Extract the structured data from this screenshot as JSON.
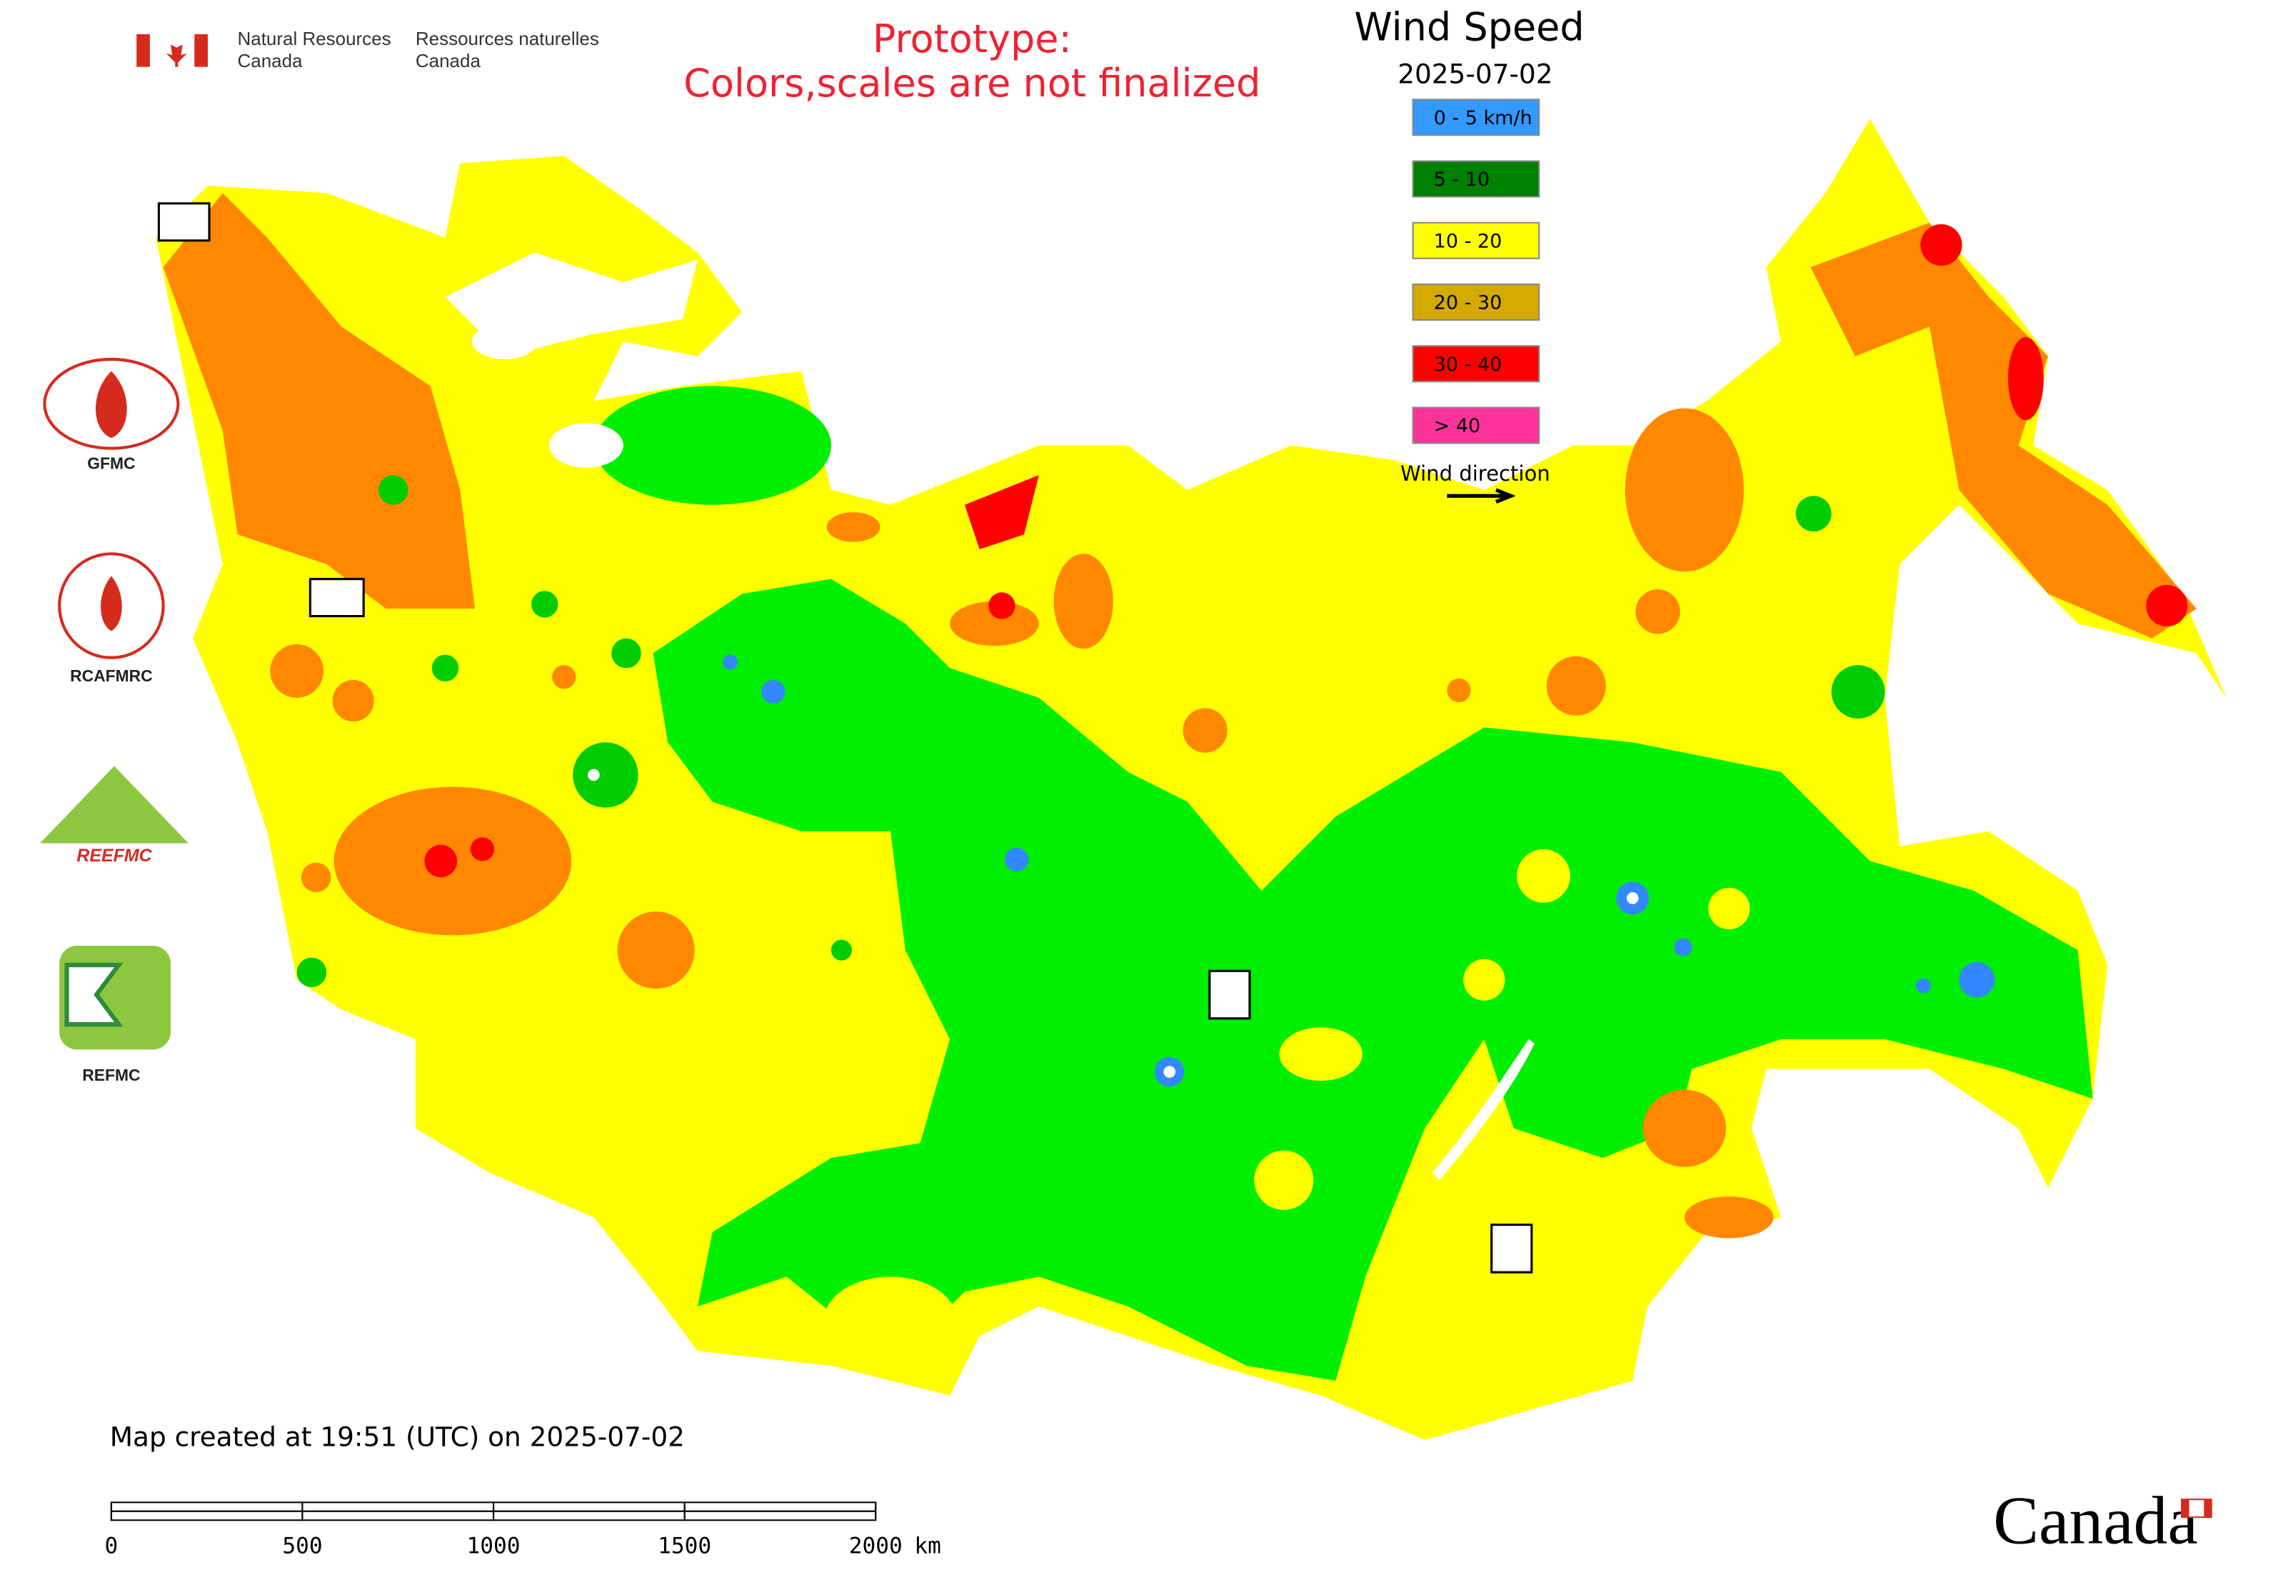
{
  "header": {
    "department_en": [
      "Natural Resources",
      "Canada"
    ],
    "department_fr": [
      "Ressources naturelles",
      "Canada"
    ],
    "notice": [
      "Prototype:",
      "Colors,scales are not finalized"
    ]
  },
  "legend": {
    "title": "Wind Speed",
    "date": "2025-07-02",
    "items": [
      {
        "label": "0 - 5 km/h",
        "color": "#3399ff"
      },
      {
        "label": "5 - 10",
        "color": "#008000"
      },
      {
        "label": "10 - 20",
        "color": "#ffff00"
      },
      {
        "label": "20 - 30",
        "color": "#d4aa00"
      },
      {
        "label": "30 - 40",
        "color": "#ff0000"
      },
      {
        "label": "> 40",
        "color": "#ff3399"
      }
    ],
    "direction": "Wind direction"
  },
  "logos": [
    "GFMC",
    "RCAFMRC",
    "REEFMC",
    "REFMC"
  ],
  "footer": {
    "created": "Map created at 19:51 (UTC) on 2025-07-02",
    "wordmark": "Canada"
  },
  "scale_bar": {
    "ticks": [
      0,
      500,
      1000,
      1500,
      2000
    ],
    "unit": "km"
  }
}
